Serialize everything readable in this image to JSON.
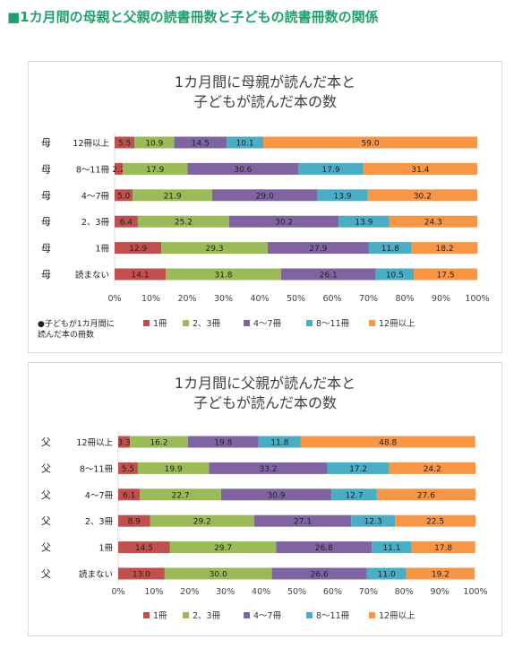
{
  "page": {
    "title": "■1カ月間の母親と父親の読書冊数と子どもの読書冊数の関係"
  },
  "legend_items": [
    "1冊",
    "2、3冊",
    "4〜7冊",
    "8〜11冊",
    "12冊以上"
  ],
  "colors": [
    "#c0504d",
    "#9bbb59",
    "#8064a2",
    "#4bacc6",
    "#f79646"
  ],
  "charts": [
    {
      "title_line1": "1カ月間に母親が読んだ本と",
      "title_line2": "子どもが読んだ本の数",
      "note_line1": "●子どもが1カ月間に",
      "note_line2": "読んだ本の冊数",
      "parent_label": "母"
    },
    {
      "title_line1": "1カ月間に父親が読んだ本と",
      "title_line2": "子どもが読んだ本の数",
      "parent_label": "父"
    }
  ],
  "chart_data": [
    {
      "type": "bar",
      "orientation": "horizontal",
      "stacked": "percent",
      "title": "1カ月間に母親が読んだ本と子どもが読んだ本の数",
      "categories": [
        "母　12冊以上",
        "母　8〜11冊",
        "母　4〜7冊",
        "母　2、3冊",
        "母　1冊",
        "母　読まない"
      ],
      "series": [
        {
          "name": "1冊",
          "values": [
            5.5,
            2.2,
            5.0,
            6.4,
            12.9,
            14.1
          ]
        },
        {
          "name": "2、3冊",
          "values": [
            10.9,
            17.9,
            21.9,
            25.2,
            29.3,
            31.8
          ]
        },
        {
          "name": "4〜7冊",
          "values": [
            14.5,
            30.6,
            29.0,
            30.2,
            27.9,
            26.1
          ]
        },
        {
          "name": "8〜11冊",
          "values": [
            10.1,
            17.9,
            13.9,
            13.9,
            11.8,
            10.5
          ]
        },
        {
          "name": "12冊以上",
          "values": [
            59.0,
            31.4,
            30.2,
            24.3,
            18.2,
            17.5
          ]
        }
      ],
      "xlim": [
        0,
        100
      ],
      "x_ticks": [
        "0%",
        "10%",
        "20%",
        "30%",
        "40%",
        "50%",
        "60%",
        "70%",
        "80%",
        "90%",
        "100%"
      ],
      "legend": "bottom",
      "grid": false
    },
    {
      "type": "bar",
      "orientation": "horizontal",
      "stacked": "percent",
      "title": "1カ月間に父親が読んだ本と子どもが読んだ本の数",
      "categories": [
        "父　12冊以上",
        "父　8〜11冊",
        "父　4〜7冊",
        "父　2、3冊",
        "父　1冊",
        "父　読まない"
      ],
      "series": [
        {
          "name": "1冊",
          "values": [
            3.3,
            5.5,
            6.1,
            8.9,
            14.5,
            13.0
          ]
        },
        {
          "name": "2、3冊",
          "values": [
            16.2,
            19.9,
            22.7,
            29.2,
            29.7,
            30.0
          ]
        },
        {
          "name": "4〜7冊",
          "values": [
            19.8,
            33.2,
            30.9,
            27.1,
            26.8,
            26.6
          ]
        },
        {
          "name": "8〜11冊",
          "values": [
            11.8,
            17.2,
            12.7,
            12.3,
            11.1,
            11.0
          ]
        },
        {
          "name": "12冊以上",
          "values": [
            48.8,
            24.2,
            27.6,
            22.5,
            17.8,
            19.2
          ]
        }
      ],
      "xlim": [
        0,
        100
      ],
      "x_ticks": [
        "0%",
        "10%",
        "20%",
        "30%",
        "40%",
        "50%",
        "60%",
        "70%",
        "80%",
        "90%",
        "100%"
      ],
      "legend": "bottom",
      "grid": false
    }
  ]
}
